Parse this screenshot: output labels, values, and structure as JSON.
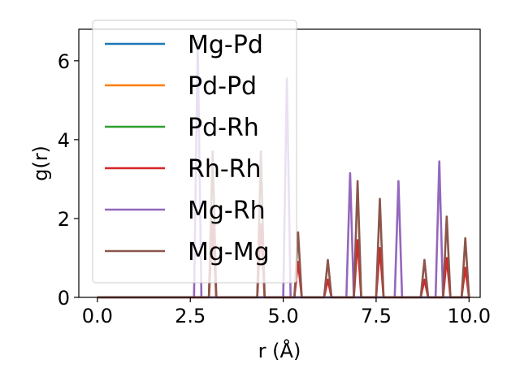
{
  "chart_data": {
    "type": "line",
    "xlabel": "r (Å)",
    "ylabel": "g(r)",
    "xlim": [
      -0.5,
      10.3
    ],
    "ylim": [
      0,
      6.8
    ],
    "xticks": [
      0.0,
      2.5,
      5.0,
      7.5,
      10.0
    ],
    "xtick_labels": [
      "0.0",
      "2.5",
      "5.0",
      "7.5",
      "10.0"
    ],
    "yticks": [
      0,
      2,
      4,
      6
    ],
    "ytick_labels": [
      "0",
      "2",
      "4",
      "6"
    ],
    "grid": false,
    "legend_position": "upper-left",
    "series": [
      {
        "name": "Mg-Pd",
        "color": "#1f77b4",
        "peaks": []
      },
      {
        "name": "Pd-Pd",
        "color": "#ff7f0e",
        "peaks": []
      },
      {
        "name": "Pd-Rh",
        "color": "#2ca02c",
        "peaks": []
      },
      {
        "name": "Rh-Rh",
        "color": "#d62728",
        "peaks": [
          [
            3.1,
            1.85
          ],
          [
            4.4,
            1.85
          ],
          [
            5.4,
            0.9
          ],
          [
            6.2,
            0.45
          ],
          [
            7.0,
            1.45
          ],
          [
            7.6,
            1.25
          ],
          [
            8.8,
            0.45
          ],
          [
            9.4,
            1.0
          ],
          [
            9.9,
            0.75
          ]
        ]
      },
      {
        "name": "Mg-Rh",
        "color": "#9467bd",
        "peaks": [
          [
            2.7,
            6.5
          ],
          [
            5.1,
            5.55
          ],
          [
            6.8,
            3.15
          ],
          [
            8.1,
            2.95
          ],
          [
            9.2,
            3.45
          ]
        ]
      },
      {
        "name": "Mg-Mg",
        "color": "#8c564b",
        "peaks": [
          [
            3.1,
            3.7
          ],
          [
            4.4,
            3.7
          ],
          [
            5.4,
            1.65
          ],
          [
            6.2,
            0.95
          ],
          [
            7.0,
            2.95
          ],
          [
            7.6,
            2.5
          ],
          [
            8.8,
            0.95
          ],
          [
            9.4,
            2.05
          ],
          [
            9.9,
            1.5
          ]
        ]
      }
    ]
  }
}
